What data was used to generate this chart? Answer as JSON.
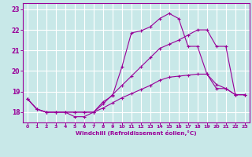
{
  "title": "",
  "xlabel": "Windchill (Refroidissement éolien,°C)",
  "bg_color": "#c8e8e8",
  "line_color": "#990099",
  "grid_color": "#b0d8d8",
  "xlim": [
    -0.5,
    23.5
  ],
  "ylim": [
    17.5,
    23.3
  ],
  "yticks": [
    18,
    19,
    20,
    21,
    22,
    23
  ],
  "xticks": [
    0,
    1,
    2,
    3,
    4,
    5,
    6,
    7,
    8,
    9,
    10,
    11,
    12,
    13,
    14,
    15,
    16,
    17,
    18,
    19,
    20,
    21,
    22,
    23
  ],
  "line1_x": [
    0,
    1,
    2,
    3,
    4,
    5,
    6,
    7,
    8,
    9,
    10,
    11,
    12,
    13,
    14,
    15,
    16,
    17,
    18,
    19,
    20,
    21,
    22,
    23
  ],
  "line1_y": [
    18.65,
    18.15,
    18.0,
    18.0,
    18.0,
    17.78,
    17.78,
    18.0,
    18.5,
    18.8,
    20.2,
    21.85,
    21.95,
    22.15,
    22.55,
    22.8,
    22.55,
    21.2,
    21.2,
    19.85,
    19.15,
    19.15,
    18.85,
    18.85
  ],
  "line2_x": [
    0,
    1,
    2,
    3,
    4,
    5,
    6,
    7,
    8,
    9,
    10,
    11,
    12,
    13,
    14,
    15,
    16,
    17,
    18,
    19,
    20,
    21,
    22,
    23
  ],
  "line2_y": [
    18.65,
    18.15,
    18.0,
    18.0,
    18.0,
    18.0,
    18.0,
    18.0,
    18.4,
    18.85,
    19.3,
    19.75,
    20.2,
    20.65,
    21.1,
    21.3,
    21.5,
    21.75,
    22.0,
    22.0,
    21.2,
    21.2,
    18.85,
    18.85
  ],
  "line3_x": [
    0,
    1,
    2,
    3,
    4,
    5,
    6,
    7,
    8,
    9,
    10,
    11,
    12,
    13,
    14,
    15,
    16,
    17,
    18,
    19,
    20,
    21,
    22,
    23
  ],
  "line3_y": [
    18.65,
    18.15,
    18.0,
    18.0,
    18.0,
    18.0,
    18.0,
    18.0,
    18.2,
    18.45,
    18.7,
    18.9,
    19.1,
    19.3,
    19.55,
    19.7,
    19.75,
    19.8,
    19.85,
    19.85,
    19.35,
    19.15,
    18.85,
    18.85
  ]
}
